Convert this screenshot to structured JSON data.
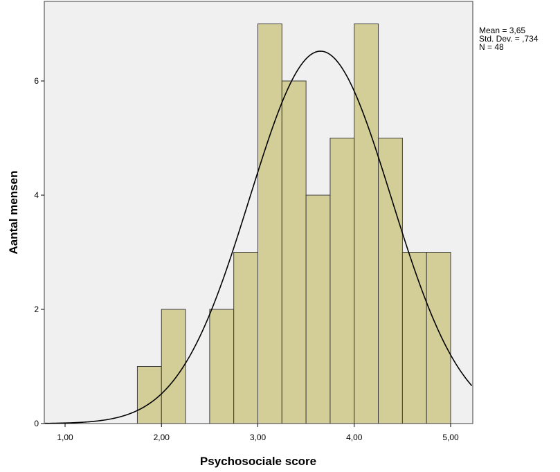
{
  "chart_data": {
    "type": "bar",
    "subtype": "histogram",
    "xlabel": "Psychosociale score",
    "ylabel": "Aantal mensen",
    "xlim": [
      0.79,
      5.22
    ],
    "ylim": [
      0,
      7.0
    ],
    "x_ticks": [
      1.0,
      2.0,
      3.0,
      4.0,
      5.0
    ],
    "x_tick_labels": [
      "1,00",
      "2,00",
      "3,00",
      "4,00",
      "5,00"
    ],
    "y_ticks": [
      0,
      2,
      4,
      6
    ],
    "y_tick_labels": [
      "0",
      "2",
      "4",
      "6"
    ],
    "bin_width": 0.25,
    "bins": [
      {
        "start": 1.75,
        "end": 2.0,
        "count": 1
      },
      {
        "start": 2.0,
        "end": 2.25,
        "count": 2
      },
      {
        "start": 2.25,
        "end": 2.5,
        "count": 0
      },
      {
        "start": 2.5,
        "end": 2.75,
        "count": 2
      },
      {
        "start": 2.75,
        "end": 3.0,
        "count": 3
      },
      {
        "start": 3.0,
        "end": 3.25,
        "count": 7
      },
      {
        "start": 3.25,
        "end": 3.5,
        "count": 6
      },
      {
        "start": 3.5,
        "end": 3.75,
        "count": 4
      },
      {
        "start": 3.75,
        "end": 4.0,
        "count": 5
      },
      {
        "start": 4.0,
        "end": 4.25,
        "count": 7
      },
      {
        "start": 4.25,
        "end": 4.5,
        "count": 5
      },
      {
        "start": 4.5,
        "end": 4.75,
        "count": 3
      },
      {
        "start": 4.75,
        "end": 5.0,
        "count": 3
      }
    ],
    "normal_curve": {
      "mean": 3.65,
      "sd": 0.734,
      "n": 48
    },
    "stats_labels": [
      "Mean = 3,65",
      "Std. Dev. = ,734",
      "N = 48"
    ],
    "grid": false,
    "colors": {
      "plot_background": "#f0f0f0",
      "bar_fill": "#d3ce97",
      "bar_stroke": "#3c3c3c",
      "curve": "#000000"
    }
  }
}
